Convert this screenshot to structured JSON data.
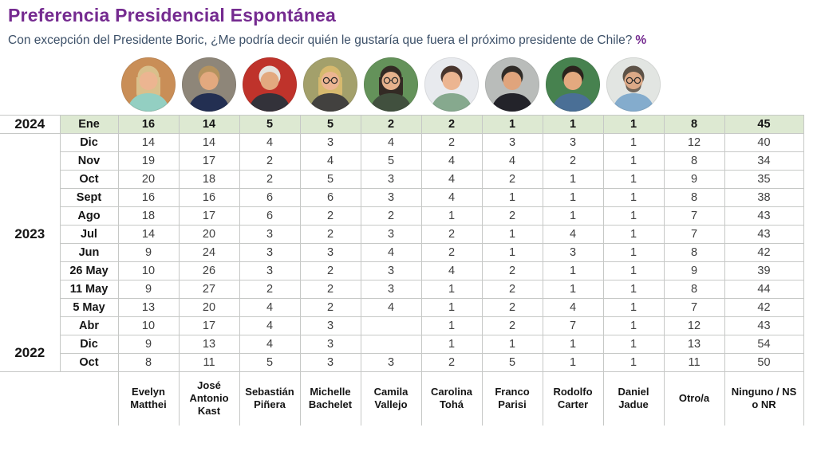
{
  "title": "Preferencia Presidencial Espontánea",
  "subtitle": {
    "text": "Con excepción del Presidente Boric, ¿Me podría decir quién le gustaría que fuera el próximo presidente de Chile?",
    "suffix": "%"
  },
  "colors": {
    "accent_purple": "#752b90",
    "subtitle_blue": "#3c5068",
    "highlight_green": "#dde9d2",
    "table_border": "#c6c8c6"
  },
  "chart_data": {
    "type": "table",
    "title": "Preferencia Presidencial Espontánea",
    "unit": "%",
    "columns": [
      {
        "label": "Evelyn Matthei",
        "avatar": {
          "bg": "#c98e57",
          "hair": "#d9c08c",
          "skin": "#ecb591",
          "shirt": "#93cfc2",
          "long": true
        }
      },
      {
        "label": "José Antonio Kast",
        "avatar": {
          "bg": "#8e8679",
          "hair": "#b5935f",
          "skin": "#e3a97f",
          "shirt": "#232f52"
        }
      },
      {
        "label": "Sebastián Piñera",
        "avatar": {
          "bg": "#bf332b",
          "hair": "#e6e3de",
          "skin": "#e3a97f",
          "shirt": "#33323a"
        }
      },
      {
        "label": "Michelle Bachelet",
        "avatar": {
          "bg": "#a3a06b",
          "hair": "#d6b96e",
          "skin": "#ecb591",
          "shirt": "#42413f",
          "long": true,
          "glasses": true
        }
      },
      {
        "label": "Camila Vallejo",
        "avatar": {
          "bg": "#64925a",
          "hair": "#332a24",
          "skin": "#e6b18c",
          "shirt": "#41503e",
          "long": true,
          "glasses": true
        }
      },
      {
        "label": "Carolina Tohá",
        "avatar": {
          "bg": "#e8eaee",
          "hair": "#49362e",
          "skin": "#ecb591",
          "shirt": "#86a98e"
        }
      },
      {
        "label": "Franco Parisi",
        "avatar": {
          "bg": "#b9bcba",
          "hair": "#2f2b27",
          "skin": "#e0a47c",
          "shirt": "#23232a"
        }
      },
      {
        "label": "Rodolfo Carter",
        "avatar": {
          "bg": "#47824f",
          "hair": "#2b231d",
          "skin": "#e3a97f",
          "shirt": "#4a6f96"
        }
      },
      {
        "label": "Daniel Jadue",
        "avatar": {
          "bg": "#e2e5e2",
          "hair": "#5d5247",
          "skin": "#dca987",
          "shirt": "#84accd",
          "glasses": true,
          "beard": true
        }
      },
      {
        "label": "Otro/a",
        "avatar": null
      },
      {
        "label": "Ninguno / NS o NR",
        "avatar": null
      }
    ],
    "year_groups": [
      {
        "label": "2024",
        "rows": 1
      },
      {
        "label": "2023",
        "rows": 11
      },
      {
        "label": "2022",
        "rows": 2
      }
    ],
    "rows": [
      {
        "month": "Ene",
        "highlight": true,
        "values": [
          "16",
          "14",
          "5",
          "5",
          "2",
          "2",
          "1",
          "1",
          "1",
          "8",
          "45"
        ]
      },
      {
        "month": "Dic",
        "highlight": false,
        "values": [
          "14",
          "14",
          "4",
          "3",
          "4",
          "2",
          "3",
          "3",
          "1",
          "12",
          "40"
        ]
      },
      {
        "month": "Nov",
        "highlight": false,
        "values": [
          "19",
          "17",
          "2",
          "4",
          "5",
          "4",
          "4",
          "2",
          "1",
          "8",
          "34"
        ]
      },
      {
        "month": "Oct",
        "highlight": false,
        "values": [
          "20",
          "18",
          "2",
          "5",
          "3",
          "4",
          "2",
          "1",
          "1",
          "9",
          "35"
        ]
      },
      {
        "month": "Sept",
        "highlight": false,
        "values": [
          "16",
          "16",
          "6",
          "6",
          "3",
          "4",
          "1",
          "1",
          "1",
          "8",
          "38"
        ]
      },
      {
        "month": "Ago",
        "highlight": false,
        "values": [
          "18",
          "17",
          "6",
          "2",
          "2",
          "1",
          "2",
          "1",
          "1",
          "7",
          "43"
        ]
      },
      {
        "month": "Jul",
        "highlight": false,
        "values": [
          "14",
          "20",
          "3",
          "2",
          "3",
          "2",
          "1",
          "4",
          "1",
          "7",
          "43"
        ]
      },
      {
        "month": "Jun",
        "highlight": false,
        "values": [
          "9",
          "24",
          "3",
          "3",
          "4",
          "2",
          "1",
          "3",
          "1",
          "8",
          "42"
        ]
      },
      {
        "month": "26 May",
        "highlight": false,
        "values": [
          "10",
          "26",
          "3",
          "2",
          "3",
          "4",
          "2",
          "1",
          "1",
          "9",
          "39"
        ]
      },
      {
        "month": "11 May",
        "highlight": false,
        "values": [
          "9",
          "27",
          "2",
          "2",
          "3",
          "1",
          "2",
          "1",
          "1",
          "8",
          "44"
        ]
      },
      {
        "month": "5 May",
        "highlight": false,
        "values": [
          "13",
          "20",
          "4",
          "2",
          "4",
          "1",
          "2",
          "4",
          "1",
          "7",
          "42"
        ]
      },
      {
        "month": "Abr",
        "highlight": false,
        "values": [
          "10",
          "17",
          "4",
          "3",
          "",
          "1",
          "2",
          "7",
          "1",
          "12",
          "43"
        ]
      },
      {
        "month": "Dic",
        "highlight": false,
        "values": [
          "9",
          "13",
          "4",
          "3",
          "",
          "1",
          "1",
          "1",
          "1",
          "13",
          "54"
        ]
      },
      {
        "month": "Oct",
        "highlight": false,
        "values": [
          "8",
          "11",
          "5",
          "3",
          "3",
          "2",
          "5",
          "1",
          "1",
          "11",
          "50"
        ]
      }
    ]
  }
}
